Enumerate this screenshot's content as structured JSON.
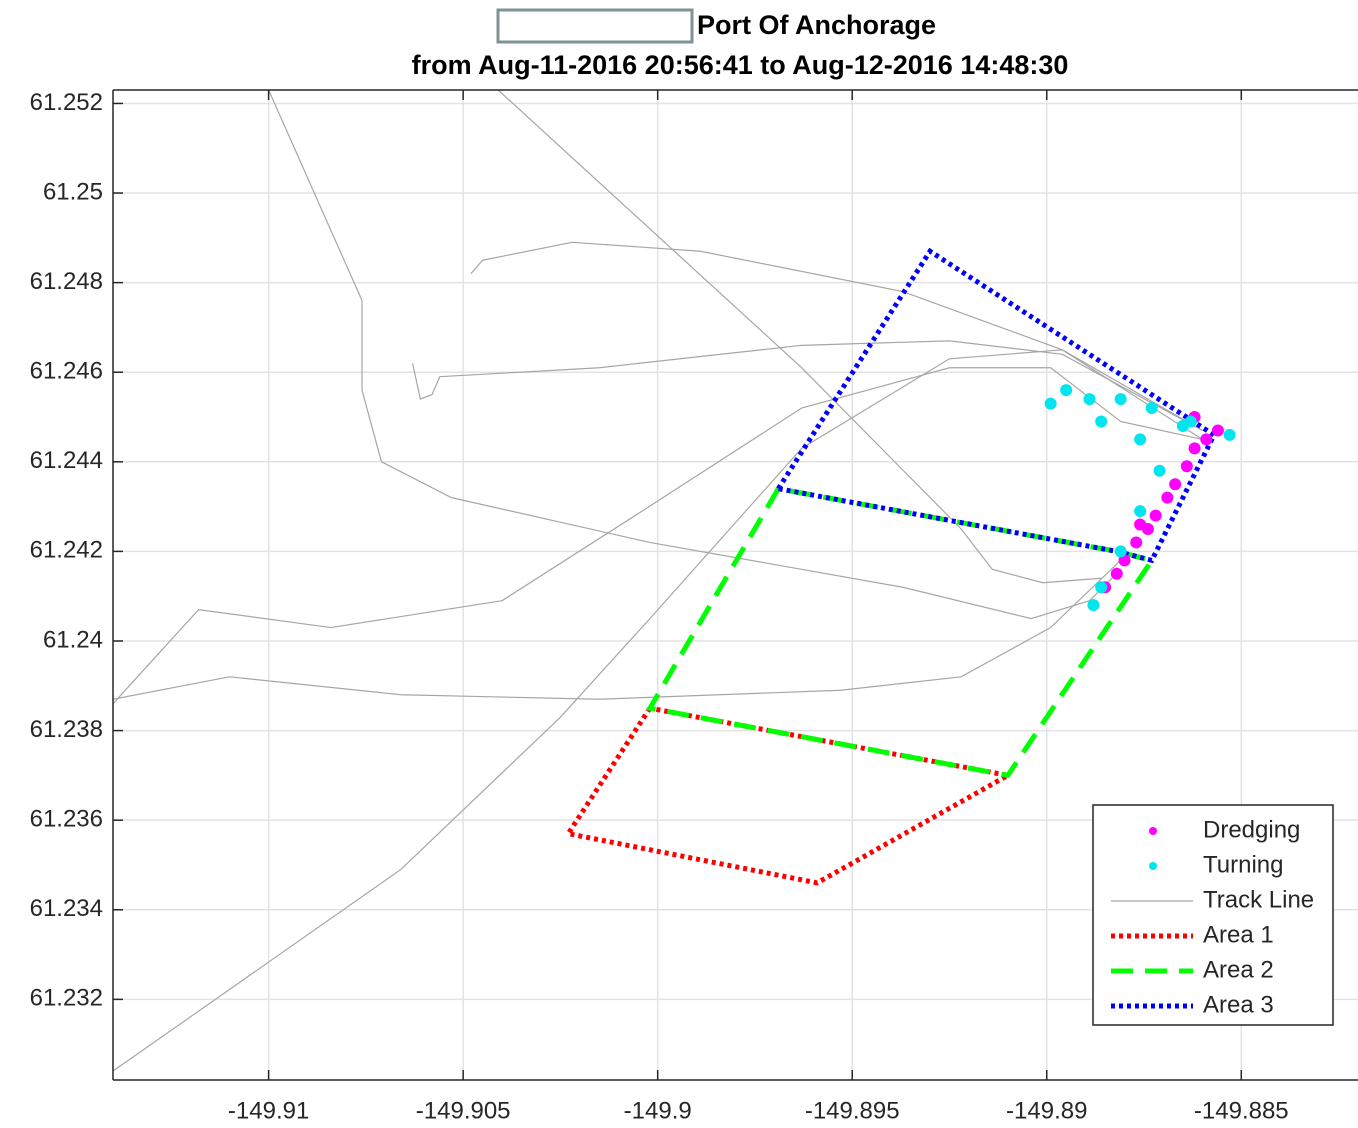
{
  "chart_data": {
    "type": "scatter",
    "title": "Port Of Anchorage",
    "subtitle": "from Aug-11-2016 20:56:41 to Aug-12-2016 14:48:30",
    "xlim": [
      -149.914,
      -149.882
    ],
    "ylim": [
      61.2302,
      61.2523
    ],
    "xticks": [
      -149.91,
      -149.905,
      -149.9,
      -149.895,
      -149.89,
      -149.885
    ],
    "yticks": [
      61.232,
      61.234,
      61.236,
      61.238,
      61.24,
      61.242,
      61.244,
      61.246,
      61.248,
      61.25,
      61.252
    ],
    "grid": true,
    "legend": "lower right",
    "series": [
      {
        "name": "Dredging",
        "color": "#ff00ff",
        "style": "markers",
        "x": [
          -149.8885,
          -149.8882,
          -149.888,
          -149.8877,
          -149.8874,
          -149.8872,
          -149.8869,
          -149.8867,
          -149.8864,
          -149.8862,
          -149.8859,
          -149.8856,
          -149.8862,
          -149.8876
        ],
        "y": [
          61.2412,
          61.2415,
          61.2418,
          61.2422,
          61.2425,
          61.2428,
          61.2432,
          61.2435,
          61.2439,
          61.2443,
          61.2445,
          61.2447,
          61.245,
          61.2426
        ]
      },
      {
        "name": "Turning",
        "color": "#00e5ee",
        "style": "markers",
        "x": [
          -149.8899,
          -149.8895,
          -149.8889,
          -149.8881,
          -149.8873,
          -149.8865,
          -149.8886,
          -149.8876,
          -149.8871,
          -149.8876,
          -149.8881,
          -149.8886,
          -149.8888,
          -149.8863,
          -149.8853
        ],
        "y": [
          61.2453,
          61.2456,
          61.2454,
          61.2454,
          61.2452,
          61.2448,
          61.2449,
          61.2445,
          61.2438,
          61.2429,
          61.242,
          61.2412,
          61.2408,
          61.2449,
          61.2446
        ]
      },
      {
        "name": "Track Line",
        "color": "#a6a6a6",
        "style": "line",
        "x": [
          -149.91,
          -149.9076,
          -149.9076,
          -149.9071,
          -149.9053,
          -149.9002,
          -149.8937,
          -149.8904,
          -149.8889,
          -149.8881,
          null,
          -149.9041,
          -149.8963,
          -149.8922,
          -149.8914,
          -149.8901,
          -149.8886,
          null,
          -149.914,
          -149.9118,
          -149.9084,
          -149.904,
          -149.9004,
          -149.8963,
          -149.8925,
          -149.8899,
          -149.8881,
          -149.886,
          null,
          -149.914,
          -149.911,
          -149.9066,
          -149.9015,
          -149.8953,
          -149.8922,
          -149.8899,
          -149.8881,
          null,
          -149.914,
          -149.9066,
          -149.9025,
          -149.9002,
          -149.8963,
          -149.8925,
          -149.8896,
          -149.886,
          null,
          -149.9063,
          -149.9061,
          -149.9058,
          -149.9056,
          -149.9015,
          -149.8963,
          -149.8925,
          -149.8896,
          -149.886,
          null,
          -149.9048,
          -149.9045,
          -149.9022,
          -149.8989,
          -149.8937,
          -149.8896,
          -149.886
        ],
        "y": [
          61.2523,
          61.2476,
          61.2456,
          61.244,
          61.2432,
          61.2422,
          61.2412,
          61.2405,
          61.2409,
          61.2416,
          null,
          61.2523,
          61.2461,
          61.2425,
          61.2416,
          61.2413,
          61.2414,
          null,
          61.2386,
          61.2407,
          61.2403,
          61.2409,
          61.2429,
          61.2452,
          61.2461,
          61.2461,
          61.2449,
          61.2445,
          null,
          61.2387,
          61.2392,
          61.2388,
          61.2387,
          61.2389,
          61.2392,
          61.2403,
          61.2418,
          null,
          61.2304,
          61.2349,
          61.2383,
          61.2405,
          61.2443,
          61.2463,
          61.2465,
          61.2445,
          null,
          61.2462,
          61.2454,
          61.2455,
          61.2459,
          61.2461,
          61.2466,
          61.2467,
          61.2464,
          61.2447,
          null,
          61.2482,
          61.2485,
          61.2489,
          61.2487,
          61.2478,
          61.2465,
          61.2447
        ]
      },
      {
        "name": "Area 1",
        "color": "#ff0000",
        "style": "dotted",
        "x": [
          -149.9002,
          -149.9023,
          -149.8959,
          -149.891,
          -149.9002
        ],
        "y": [
          61.2385,
          61.2357,
          61.2346,
          61.237,
          61.2385
        ]
      },
      {
        "name": "Area 2",
        "color": "#00ff00",
        "style": "dashed",
        "x": [
          -149.8969,
          -149.9002,
          -149.891,
          -149.8873,
          -149.8882,
          -149.8969
        ],
        "y": [
          61.2434,
          61.2385,
          61.237,
          61.2418,
          61.242,
          61.2434
        ]
      },
      {
        "name": "Area 3",
        "color": "#0000ff",
        "style": "dotted",
        "x": [
          -149.8969,
          -149.893,
          -149.8857,
          -149.8873,
          -149.8882,
          -149.8969
        ],
        "y": [
          61.2434,
          61.2487,
          61.2446,
          61.2418,
          61.242,
          61.2434
        ]
      }
    ]
  }
}
